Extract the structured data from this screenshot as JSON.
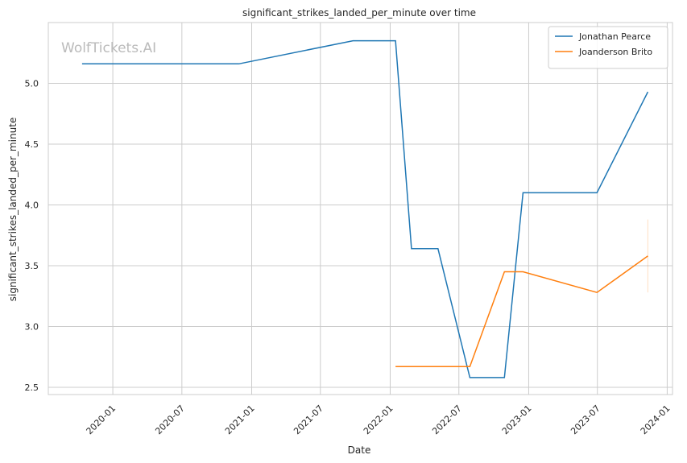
{
  "chart_data": {
    "type": "line",
    "title": "significant_strikes_landed_per_minute over time",
    "xlabel": "Date",
    "ylabel": "significant_strikes_landed_per_minute",
    "watermark": "WolfTickets.AI",
    "grid": true,
    "legend_position": "top-right",
    "x_range": [
      "2019-07-15",
      "2024-01-15"
    ],
    "y_range": [
      2.44,
      5.5
    ],
    "x_ticks": [
      "2020-01",
      "2020-07",
      "2021-01",
      "2021-07",
      "2022-01",
      "2022-07",
      "2023-01",
      "2023-07",
      "2024-01"
    ],
    "y_ticks": [
      "2.5",
      "3.0",
      "3.5",
      "4.0",
      "4.5",
      "5.0"
    ],
    "series": [
      {
        "name": "Jonathan Pearce",
        "color": "#1f77b4",
        "points": [
          [
            "2019-10-12",
            5.16
          ],
          [
            "2020-11-28",
            5.16
          ],
          [
            "2021-09-25",
            5.35
          ],
          [
            "2022-01-15",
            5.35
          ],
          [
            "2022-02-26",
            3.64
          ],
          [
            "2022-05-07",
            3.64
          ],
          [
            "2022-07-30",
            2.58
          ],
          [
            "2022-10-29",
            2.58
          ],
          [
            "2022-12-17",
            4.1
          ],
          [
            "2023-06-30",
            4.1
          ],
          [
            "2023-11-11",
            4.93
          ]
        ]
      },
      {
        "name": "Joanderson Brito",
        "color": "#ff7f0e",
        "points": [
          [
            "2022-01-15",
            2.67
          ],
          [
            "2022-07-30",
            2.67
          ],
          [
            "2022-10-29",
            3.45
          ],
          [
            "2022-12-17",
            3.45
          ],
          [
            "2023-06-30",
            3.28
          ],
          [
            "2023-11-11",
            3.58
          ]
        ],
        "error_band": {
          "date": "2023-11-11",
          "low": 3.28,
          "high": 3.88
        }
      }
    ]
  }
}
